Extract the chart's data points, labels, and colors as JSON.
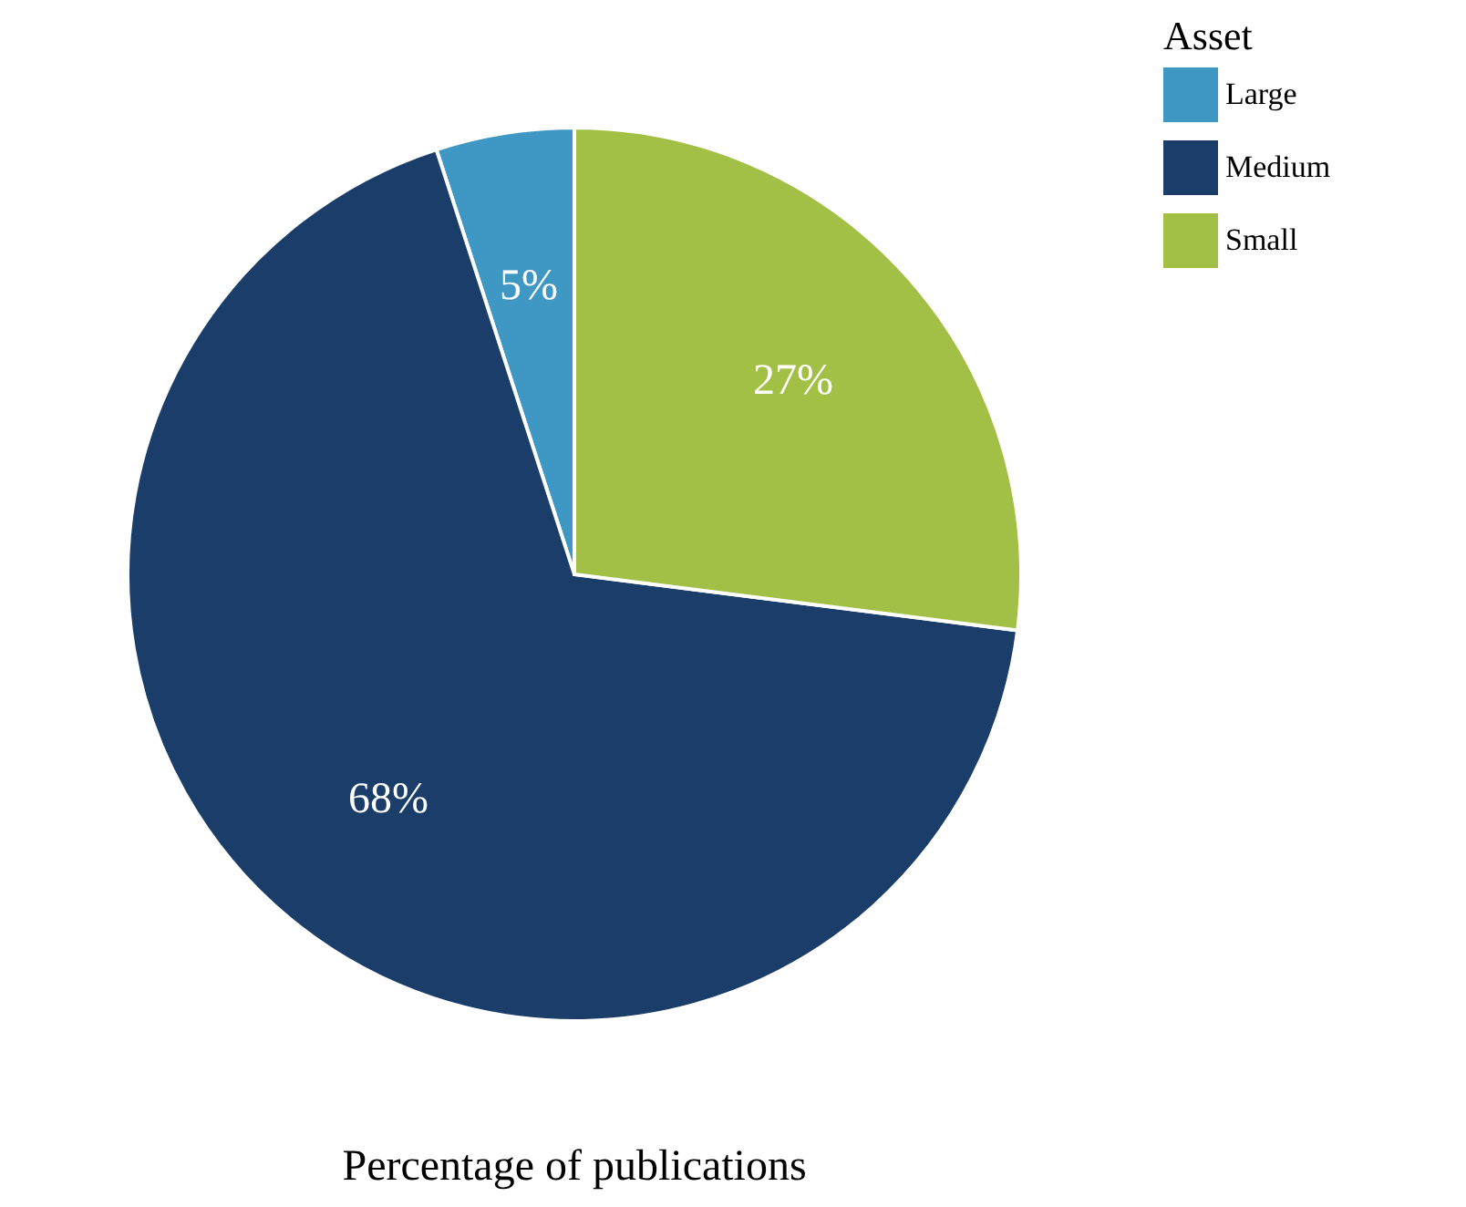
{
  "chart_data": {
    "type": "pie",
    "xlabel": "Percentage of publications",
    "legend_title": "Asset",
    "legend": "right",
    "categories": [
      "Large",
      "Medium",
      "Small"
    ],
    "values": [
      5,
      68,
      27
    ],
    "colors": [
      "#3f98c4",
      "#1b3d69",
      "#a2c046"
    ],
    "value_labels": [
      "5%",
      "68%",
      "27%"
    ]
  }
}
